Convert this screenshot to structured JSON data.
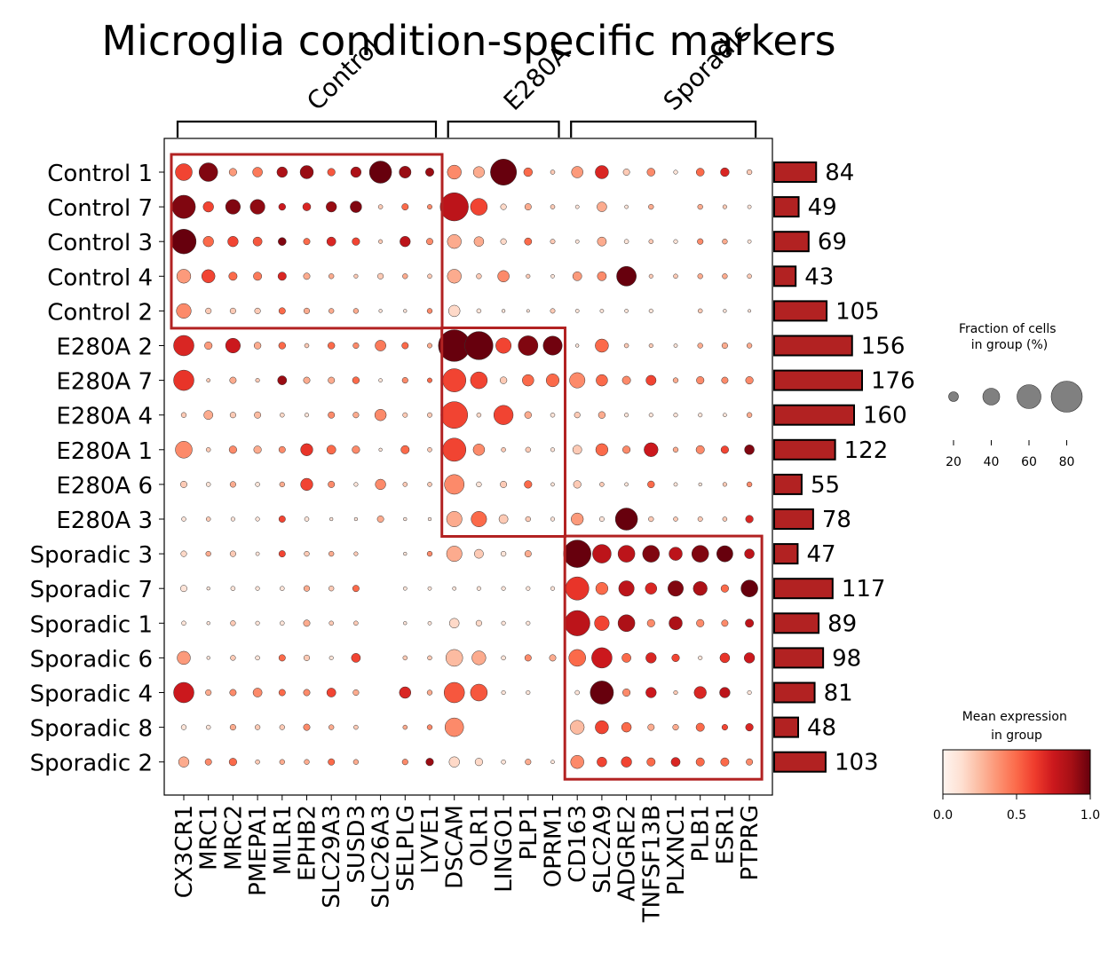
{
  "chart_data": {
    "type": "dotplot",
    "title": "Microglia condition-specific markers",
    "group_brackets": [
      {
        "label": "Control",
        "genes": [
          "CX3CR1",
          "MRC1",
          "MRC2",
          "PMEPA1",
          "MILR1",
          "EPHB2",
          "SLC29A3",
          "SUSD3",
          "SLC26A3",
          "SELPLG",
          "LYVE1"
        ]
      },
      {
        "label": "E280A",
        "genes": [
          "DSCAM",
          "OLR1",
          "LINGO1",
          "PLP1",
          "OPRM1"
        ]
      },
      {
        "label": "Sporadic",
        "genes": [
          "CD163",
          "SLC2A9",
          "ADGRE2",
          "TNFSF13B",
          "PLXNC1",
          "PLB1",
          "ESR1",
          "PTPRG"
        ]
      }
    ],
    "genes": [
      "CX3CR1",
      "MRC1",
      "MRC2",
      "PMEPA1",
      "MILR1",
      "EPHB2",
      "SLC29A3",
      "SUSD3",
      "SLC26A3",
      "SELPLG",
      "LYVE1",
      "DSCAM",
      "OLR1",
      "LINGO1",
      "PLP1",
      "OPRM1",
      "CD163",
      "SLC2A9",
      "ADGRE2",
      "TNFSF13B",
      "PLXNC1",
      "PLB1",
      "ESR1",
      "PTPRG"
    ],
    "rows": [
      {
        "label": "Control 1",
        "n": 84,
        "frac": [
          40,
          45,
          14,
          20,
          22,
          30,
          14,
          22,
          55,
          26,
          16,
          32,
          24,
          66,
          17,
          5,
          25,
          30,
          11,
          15,
          4,
          15,
          17,
          7
        ],
        "expr": [
          0.6,
          0.95,
          0.35,
          0.45,
          0.85,
          0.9,
          0.55,
          0.85,
          1.0,
          0.9,
          0.9,
          0.4,
          0.3,
          1.0,
          0.5,
          0.2,
          0.35,
          0.7,
          0.2,
          0.4,
          0.1,
          0.5,
          0.7,
          0.2
        ]
      },
      {
        "label": "Control 7",
        "n": 49,
        "frac": [
          58,
          22,
          34,
          34,
          12,
          15,
          22,
          25,
          5,
          11,
          6,
          72,
          40,
          9,
          11,
          5,
          3,
          20,
          3,
          7,
          0,
          7,
          4,
          3
        ],
        "expr": [
          0.95,
          0.6,
          0.95,
          0.92,
          0.75,
          0.7,
          0.9,
          0.95,
          0.2,
          0.5,
          0.4,
          0.8,
          0.6,
          0.15,
          0.3,
          0.2,
          0.1,
          0.3,
          0.1,
          0.3,
          0,
          0.3,
          0.2,
          0.1
        ]
      },
      {
        "label": "Control 3",
        "n": 69,
        "frac": [
          62,
          22,
          22,
          18,
          15,
          11,
          18,
          14,
          4,
          22,
          11,
          32,
          20,
          9,
          13,
          6,
          3,
          18,
          5,
          5,
          4,
          9,
          7,
          3
        ],
        "expr": [
          1.0,
          0.5,
          0.6,
          0.55,
          0.95,
          0.5,
          0.7,
          0.6,
          0.2,
          0.8,
          0.4,
          0.3,
          0.3,
          0.15,
          0.5,
          0.2,
          0.1,
          0.3,
          0.1,
          0.2,
          0.1,
          0.4,
          0.3,
          0.1
        ]
      },
      {
        "label": "Control 4",
        "n": 43,
        "frac": [
          32,
          30,
          16,
          16,
          16,
          11,
          7,
          4,
          9,
          7,
          5,
          32,
          7,
          25,
          4,
          3,
          18,
          18,
          48,
          4,
          5,
          7,
          7,
          5
        ],
        "expr": [
          0.35,
          0.6,
          0.5,
          0.45,
          0.7,
          0.3,
          0.3,
          0.2,
          0.2,
          0.3,
          0.2,
          0.3,
          0.2,
          0.4,
          0.2,
          0.1,
          0.35,
          0.4,
          1.0,
          0.2,
          0.2,
          0.3,
          0.3,
          0.2
        ]
      },
      {
        "label": "Control 2",
        "n": 105,
        "frac": [
          34,
          9,
          9,
          9,
          11,
          9,
          7,
          7,
          2,
          2,
          7,
          25,
          5,
          2,
          1,
          6,
          3,
          3,
          3,
          4,
          0,
          5,
          2,
          1
        ],
        "expr": [
          0.4,
          0.2,
          0.2,
          0.2,
          0.5,
          0.3,
          0.3,
          0.3,
          0.1,
          0.1,
          0.4,
          0.15,
          0.1,
          0.1,
          0.1,
          0.2,
          0.1,
          0.1,
          0.1,
          0.1,
          0,
          0.2,
          0.1,
          0.1
        ]
      },
      {
        "label": "E280A 2",
        "n": 156,
        "frac": [
          50,
          14,
          34,
          12,
          12,
          5,
          12,
          9,
          23,
          11,
          6,
          82,
          72,
          36,
          48,
          46,
          2,
          30,
          5,
          4,
          3,
          7,
          9,
          7
        ],
        "expr": [
          0.7,
          0.35,
          0.75,
          0.3,
          0.5,
          0.2,
          0.5,
          0.4,
          0.45,
          0.5,
          0.3,
          1.0,
          1.0,
          0.6,
          0.95,
          0.98,
          0.1,
          0.5,
          0.2,
          0.2,
          0.1,
          0.3,
          0.3,
          0.3
        ]
      },
      {
        "label": "E280A 7",
        "n": 176,
        "frac": [
          50,
          3,
          11,
          4,
          18,
          11,
          11,
          12,
          3,
          9,
          6,
          58,
          40,
          12,
          25,
          29,
          36,
          25,
          16,
          21,
          7,
          14,
          11,
          14
        ],
        "expr": [
          0.65,
          0.2,
          0.3,
          0.2,
          0.9,
          0.3,
          0.3,
          0.5,
          0.1,
          0.4,
          0.5,
          0.6,
          0.6,
          0.2,
          0.5,
          0.5,
          0.4,
          0.5,
          0.4,
          0.6,
          0.3,
          0.4,
          0.4,
          0.4
        ]
      },
      {
        "label": "E280A 4",
        "n": 160,
        "frac": [
          7,
          18,
          9,
          11,
          5,
          4,
          11,
          9,
          25,
          6,
          6,
          68,
          5,
          47,
          12,
          5,
          9,
          12,
          4,
          4,
          4,
          4,
          3,
          7
        ],
        "expr": [
          0.2,
          0.3,
          0.2,
          0.25,
          0.15,
          0.1,
          0.4,
          0.3,
          0.4,
          0.2,
          0.2,
          0.6,
          0.15,
          0.6,
          0.3,
          0.1,
          0.2,
          0.3,
          0.1,
          0.1,
          0.1,
          0.1,
          0.1,
          0.3
        ]
      },
      {
        "label": "E280A 1",
        "n": 122,
        "frac": [
          40,
          5,
          14,
          14,
          11,
          27,
          18,
          14,
          2,
          16,
          5,
          58,
          25,
          5,
          7,
          4,
          18,
          27,
          14,
          32,
          7,
          16,
          14,
          20
        ],
        "expr": [
          0.4,
          0.2,
          0.4,
          0.3,
          0.4,
          0.65,
          0.5,
          0.4,
          0.1,
          0.5,
          0.2,
          0.6,
          0.4,
          0.2,
          0.2,
          0.1,
          0.2,
          0.5,
          0.4,
          0.75,
          0.3,
          0.4,
          0.6,
          0.95
        ]
      },
      {
        "label": "E280A 6",
        "n": 55,
        "frac": [
          11,
          5,
          9,
          5,
          7,
          27,
          11,
          4,
          22,
          5,
          5,
          48,
          7,
          11,
          14,
          3,
          14,
          5,
          3,
          12,
          3,
          2,
          4,
          7
        ],
        "expr": [
          0.2,
          0.1,
          0.3,
          0.1,
          0.3,
          0.6,
          0.4,
          0.1,
          0.4,
          0.2,
          0.2,
          0.4,
          0.1,
          0.2,
          0.5,
          0.1,
          0.2,
          0.2,
          0.1,
          0.5,
          0.1,
          0.1,
          0.2,
          0.4
        ]
      },
      {
        "label": "E280A 3",
        "n": 78,
        "frac": [
          5,
          5,
          4,
          4,
          11,
          5,
          2,
          2,
          11,
          2,
          2,
          36,
          36,
          18,
          7,
          4,
          27,
          6,
          55,
          7,
          5,
          6,
          5,
          14
        ],
        "expr": [
          0.1,
          0.2,
          0.1,
          0.1,
          0.6,
          0.1,
          0.1,
          0.1,
          0.3,
          0.1,
          0.1,
          0.3,
          0.5,
          0.2,
          0.2,
          0.1,
          0.35,
          0.1,
          1.0,
          0.2,
          0.2,
          0.2,
          0.2,
          0.7
        ]
      },
      {
        "label": "Sporadic 3",
        "n": 47,
        "frac": [
          9,
          7,
          9,
          3,
          11,
          7,
          7,
          4,
          0,
          2,
          7,
          36,
          18,
          7,
          11,
          0,
          70,
          45,
          40,
          40,
          30,
          40,
          38,
          20
        ],
        "expr": [
          0.15,
          0.3,
          0.2,
          0.1,
          0.6,
          0.2,
          0.3,
          0.2,
          0,
          0.1,
          0.4,
          0.3,
          0.2,
          0.1,
          0.3,
          0,
          1.0,
          0.8,
          0.8,
          0.95,
          0.8,
          0.95,
          1.0,
          0.8
        ]
      },
      {
        "label": "Sporadic 7",
        "n": 117,
        "frac": [
          11,
          2,
          5,
          4,
          5,
          9,
          7,
          11,
          0,
          3,
          3,
          3,
          4,
          4,
          4,
          4,
          58,
          27,
          36,
          25,
          36,
          32,
          14,
          40
        ],
        "expr": [
          0.1,
          0.1,
          0.1,
          0.1,
          0.1,
          0.3,
          0.2,
          0.5,
          0,
          0.1,
          0.1,
          0.1,
          0.1,
          0.1,
          0.1,
          0.1,
          0.65,
          0.5,
          0.8,
          0.7,
          0.95,
          0.85,
          0.5,
          1.0
        ]
      },
      {
        "label": "Sporadic 1",
        "n": 89,
        "frac": [
          5,
          2,
          7,
          4,
          5,
          11,
          5,
          5,
          0,
          2,
          3,
          20,
          9,
          4,
          4,
          0,
          64,
          34,
          40,
          14,
          30,
          14,
          11,
          16
        ],
        "expr": [
          0.1,
          0.1,
          0.2,
          0.1,
          0.1,
          0.3,
          0.2,
          0.2,
          0,
          0.1,
          0.1,
          0.15,
          0.15,
          0.1,
          0.1,
          0,
          0.8,
          0.6,
          0.85,
          0.4,
          0.85,
          0.4,
          0.4,
          0.8
        ]
      },
      {
        "label": "Sporadic 6",
        "n": 98,
        "frac": [
          30,
          2,
          7,
          5,
          11,
          9,
          4,
          18,
          0,
          5,
          5,
          40,
          32,
          5,
          11,
          11,
          40,
          50,
          18,
          22,
          14,
          4,
          20,
          22
        ],
        "expr": [
          0.35,
          0.1,
          0.2,
          0.1,
          0.5,
          0.2,
          0.1,
          0.6,
          0,
          0.2,
          0.2,
          0.25,
          0.3,
          0.1,
          0.4,
          0.3,
          0.5,
          0.75,
          0.5,
          0.7,
          0.6,
          0.1,
          0.65,
          0.75
        ]
      },
      {
        "label": "Sporadic 4",
        "n": 81,
        "frac": [
          50,
          9,
          11,
          18,
          11,
          11,
          18,
          9,
          0,
          25,
          7,
          50,
          40,
          4,
          4,
          0,
          5,
          58,
          14,
          22,
          4,
          27,
          22,
          4
        ],
        "expr": [
          0.75,
          0.3,
          0.4,
          0.4,
          0.5,
          0.4,
          0.6,
          0.3,
          0,
          0.7,
          0.3,
          0.55,
          0.55,
          0.1,
          0.1,
          0,
          0.1,
          1.0,
          0.4,
          0.75,
          0.2,
          0.7,
          0.8,
          0.1
        ]
      },
      {
        "label": "Sporadic 8",
        "n": 48,
        "frac": [
          7,
          5,
          9,
          7,
          7,
          11,
          7,
          5,
          0,
          5,
          7,
          45,
          0,
          0,
          0,
          0,
          32,
          30,
          20,
          11,
          9,
          16,
          9,
          14
        ],
        "expr": [
          0.1,
          0.1,
          0.3,
          0.2,
          0.2,
          0.4,
          0.3,
          0.2,
          0,
          0.3,
          0.4,
          0.4,
          0,
          0,
          0,
          0,
          0.25,
          0.6,
          0.5,
          0.3,
          0.3,
          0.5,
          0.6,
          0.7
        ]
      },
      {
        "label": "Sporadic 2",
        "n": 103,
        "frac": [
          22,
          11,
          14,
          5,
          7,
          7,
          11,
          7,
          0,
          9,
          14,
          22,
          14,
          5,
          9,
          3,
          30,
          20,
          22,
          16,
          18,
          16,
          16,
          11
        ],
        "expr": [
          0.3,
          0.4,
          0.5,
          0.2,
          0.3,
          0.3,
          0.5,
          0.3,
          0,
          0.4,
          0.9,
          0.15,
          0.15,
          0.1,
          0.3,
          0.1,
          0.4,
          0.6,
          0.6,
          0.5,
          0.7,
          0.5,
          0.5,
          0.4
        ]
      }
    ],
    "highlight_boxes": [
      {
        "rows": [
          "Control 1",
          "Control 2"
        ],
        "genes": [
          "CX3CR1",
          "LYVE1"
        ]
      },
      {
        "rows": [
          "E280A 2",
          "E280A 3"
        ],
        "genes": [
          "DSCAM",
          "OPRM1"
        ]
      },
      {
        "rows": [
          "Sporadic 3",
          "Sporadic 2"
        ],
        "genes": [
          "CD163",
          "PTPRG"
        ]
      }
    ],
    "size_legend": {
      "title": "Fraction of cells\nin group (%)",
      "values": [
        20,
        40,
        60,
        80
      ]
    },
    "color_legend": {
      "title": "Mean expression\nin group",
      "ticks": [
        "0.0",
        "0.5",
        "1.0"
      ],
      "range": [
        0,
        1
      ],
      "colormap": "Reds"
    },
    "colors": {
      "box": "#b22222",
      "bar": "#b22222",
      "dot_edge": "#333333"
    }
  }
}
